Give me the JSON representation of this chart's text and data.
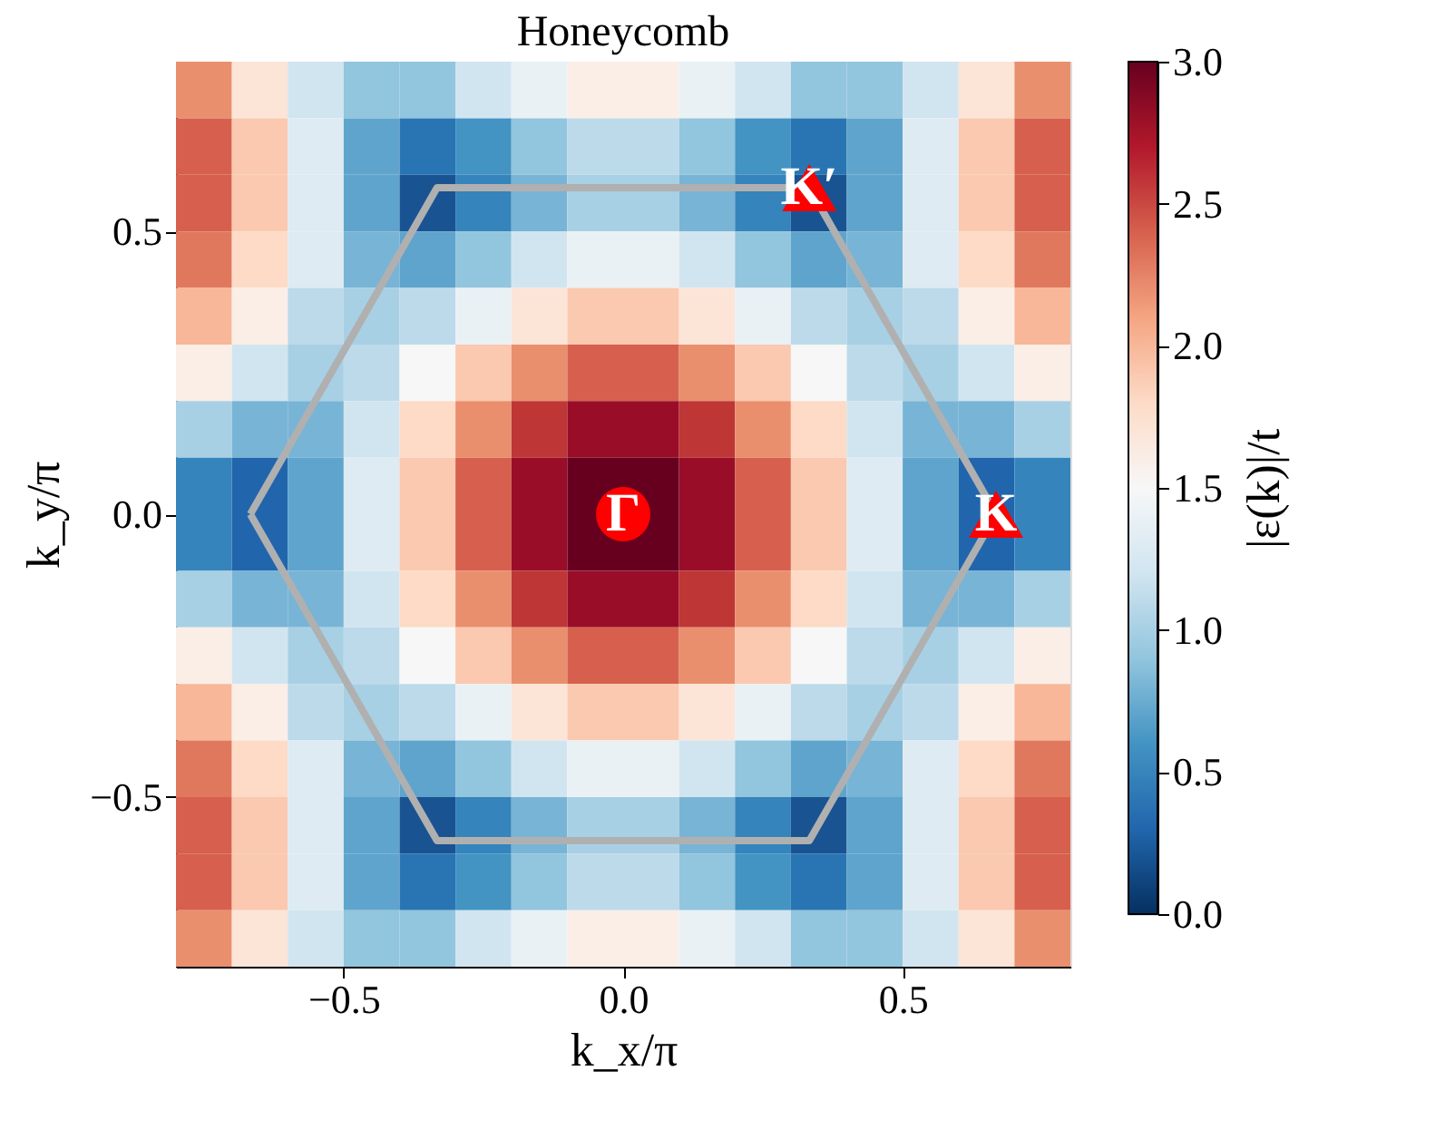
{
  "chart_data": {
    "type": "heatmap",
    "title": "Honeycomb",
    "xlabel": "k_x/π",
    "ylabel": "k_y/π",
    "clabel": "|ε(k)|/t",
    "x": [
      -0.75,
      -0.65,
      -0.55,
      -0.45,
      -0.35,
      -0.25,
      -0.15,
      -0.05,
      0.05,
      0.15,
      0.25,
      0.35,
      0.45,
      0.55,
      0.65,
      0.75
    ],
    "y": [
      0.75,
      0.65,
      0.55,
      0.45,
      0.35,
      0.25,
      0.15,
      0.05,
      -0.05,
      -0.15,
      -0.25,
      -0.35,
      -0.45,
      -0.55,
      -0.65,
      -0.75
    ],
    "cells": [
      [
        2.2,
        1.7,
        1.2,
        0.9,
        0.9,
        1.2,
        1.4,
        1.6,
        1.6,
        1.4,
        1.2,
        0.9,
        0.9,
        1.2,
        1.7,
        2.2
      ],
      [
        2.4,
        1.9,
        1.3,
        0.7,
        0.4,
        0.6,
        0.9,
        1.1,
        1.1,
        0.9,
        0.6,
        0.4,
        0.7,
        1.3,
        1.9,
        2.4
      ],
      [
        2.4,
        1.9,
        1.3,
        0.7,
        0.2,
        0.5,
        0.8,
        1.0,
        1.0,
        0.8,
        0.5,
        0.2,
        0.7,
        1.3,
        1.9,
        2.4
      ],
      [
        2.3,
        1.8,
        1.3,
        0.8,
        0.7,
        0.9,
        1.2,
        1.4,
        1.4,
        1.2,
        0.9,
        0.7,
        0.8,
        1.3,
        1.8,
        2.3
      ],
      [
        2.0,
        1.6,
        1.1,
        1.0,
        1.1,
        1.4,
        1.7,
        1.9,
        1.9,
        1.7,
        1.4,
        1.1,
        1.0,
        1.1,
        1.6,
        2.0
      ],
      [
        1.6,
        1.2,
        1.0,
        1.1,
        1.5,
        1.9,
        2.2,
        2.4,
        2.4,
        2.2,
        1.9,
        1.5,
        1.1,
        1.0,
        1.2,
        1.6
      ],
      [
        1.0,
        0.8,
        0.8,
        1.2,
        1.8,
        2.2,
        2.6,
        2.8,
        2.8,
        2.6,
        2.2,
        1.8,
        1.2,
        0.8,
        0.8,
        1.0
      ],
      [
        0.5,
        0.3,
        0.7,
        1.3,
        1.9,
        2.4,
        2.8,
        3.0,
        3.0,
        2.8,
        2.4,
        1.9,
        1.3,
        0.7,
        0.3,
        0.5
      ],
      [
        0.5,
        0.3,
        0.7,
        1.3,
        1.9,
        2.4,
        2.8,
        3.0,
        3.0,
        2.8,
        2.4,
        1.9,
        1.3,
        0.7,
        0.3,
        0.5
      ],
      [
        1.0,
        0.8,
        0.8,
        1.2,
        1.8,
        2.2,
        2.6,
        2.8,
        2.8,
        2.6,
        2.2,
        1.8,
        1.2,
        0.8,
        0.8,
        1.0
      ],
      [
        1.6,
        1.2,
        1.0,
        1.1,
        1.5,
        1.9,
        2.2,
        2.4,
        2.4,
        2.2,
        1.9,
        1.5,
        1.1,
        1.0,
        1.2,
        1.6
      ],
      [
        2.0,
        1.6,
        1.1,
        1.0,
        1.1,
        1.4,
        1.7,
        1.9,
        1.9,
        1.7,
        1.4,
        1.1,
        1.0,
        1.1,
        1.6,
        2.0
      ],
      [
        2.3,
        1.8,
        1.3,
        0.8,
        0.7,
        0.9,
        1.2,
        1.4,
        1.4,
        1.2,
        0.9,
        0.7,
        0.8,
        1.3,
        1.8,
        2.3
      ],
      [
        2.4,
        1.9,
        1.3,
        0.7,
        0.2,
        0.5,
        0.8,
        1.0,
        1.0,
        0.8,
        0.5,
        0.2,
        0.7,
        1.3,
        1.9,
        2.4
      ],
      [
        2.4,
        1.9,
        1.3,
        0.7,
        0.4,
        0.6,
        0.9,
        1.1,
        1.1,
        0.9,
        0.6,
        0.4,
        0.7,
        1.3,
        1.9,
        2.4
      ],
      [
        2.2,
        1.7,
        1.2,
        0.9,
        0.9,
        1.2,
        1.4,
        1.6,
        1.6,
        1.4,
        1.2,
        0.9,
        0.9,
        1.2,
        1.7,
        2.2
      ]
    ],
    "clim": [
      0,
      3
    ],
    "cticks": [
      {
        "value": 0,
        "label": "0.0"
      },
      {
        "value": 0.5,
        "label": "0.5"
      },
      {
        "value": 1,
        "label": "1.0"
      },
      {
        "value": 1.5,
        "label": "1.5"
      },
      {
        "value": 2,
        "label": "2.0"
      },
      {
        "value": 2.5,
        "label": "2.5"
      },
      {
        "value": 3,
        "label": "3.0"
      }
    ],
    "series": [
      {
        "type": "line",
        "color": "#b0b0b0",
        "x": [
          -0.667,
          -0.333,
          0.333,
          0.667
        ],
        "values": [
          0,
          0.577,
          0.577,
          0
        ]
      },
      {
        "type": "line",
        "color": "#b0b0b0",
        "x": [
          -0.667,
          -0.333,
          0.333,
          0.667
        ],
        "values": [
          0,
          -0.577,
          -0.577,
          0
        ]
      },
      {
        "type": "scatter",
        "marker": "circle",
        "color": "#ff0000",
        "x": [
          0
        ],
        "values": [
          0
        ]
      },
      {
        "type": "scatter",
        "marker": "triangle",
        "color": "#ff0000",
        "x": [
          0.667,
          0.333
        ],
        "values": [
          0,
          0.577
        ]
      }
    ],
    "annotations": [
      {
        "text": "Γ",
        "x": 0,
        "y": 0
      },
      {
        "text": "K",
        "x": 0.667,
        "y": 0
      },
      {
        "text": "K′",
        "x": 0.333,
        "y": 0.577
      }
    ],
    "xlim": [
      -0.8,
      0.8
    ],
    "ylim": [
      -0.8,
      0.8
    ],
    "xticks": [
      {
        "value": -0.5,
        "label": "−0.5"
      },
      {
        "value": 0,
        "label": "0.0"
      },
      {
        "value": 0.5,
        "label": "0.5"
      }
    ],
    "yticks": [
      {
        "value": -0.5,
        "label": "−0.5"
      },
      {
        "value": 0,
        "label": "0.0"
      },
      {
        "value": 0.5,
        "label": "0.5"
      }
    ],
    "grid": false
  }
}
